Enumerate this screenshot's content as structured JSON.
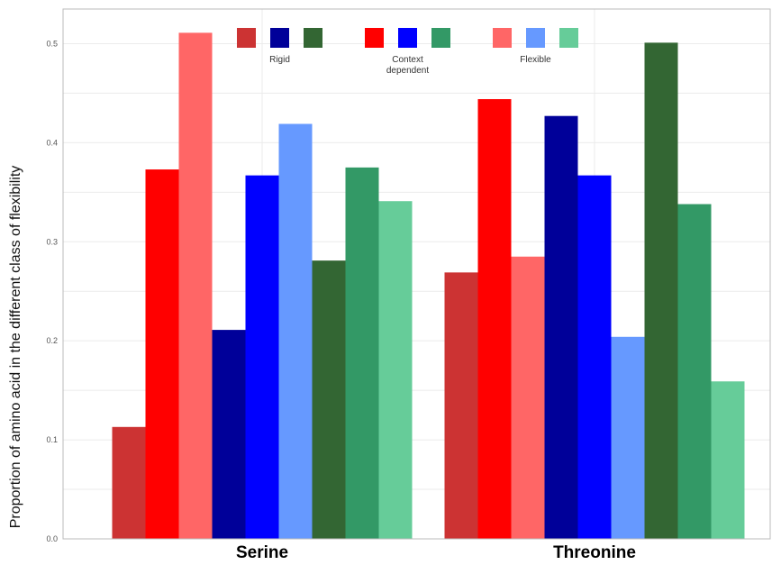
{
  "chart_data": {
    "type": "bar",
    "title": "",
    "xlabel": "",
    "ylabel": "Proportion of amino acid in the different class of flexibility",
    "categories": [
      "Serine",
      "Threonine"
    ],
    "ylim": [
      0,
      0.535
    ],
    "yticks": [
      "0.0",
      "0.1",
      "0.2",
      "0.3",
      "0.4",
      "0.5"
    ],
    "grid": true,
    "legend_position": "top",
    "legend_groups": [
      {
        "label": [
          "Rigid"
        ],
        "series": [
          0,
          3,
          6
        ]
      },
      {
        "label": [
          "Context",
          "dependent"
        ],
        "series": [
          1,
          4,
          7
        ]
      },
      {
        "label": [
          "Flexible"
        ],
        "series": [
          2,
          5,
          8
        ]
      }
    ],
    "series": [
      {
        "color": "#cc3333",
        "values": [
          0.113,
          0.269
        ]
      },
      {
        "color": "#ff0000",
        "values": [
          0.373,
          0.444
        ]
      },
      {
        "color": "#ff6666",
        "values": [
          0.511,
          0.285
        ]
      },
      {
        "color": "#000099",
        "values": [
          0.211,
          0.427
        ]
      },
      {
        "color": "#0000ff",
        "values": [
          0.367,
          0.367
        ]
      },
      {
        "color": "#6699ff",
        "values": [
          0.419,
          0.204
        ]
      },
      {
        "color": "#336633",
        "values": [
          0.281,
          0.501
        ]
      },
      {
        "color": "#339966",
        "values": [
          0.375,
          0.338
        ]
      },
      {
        "color": "#66cc99",
        "values": [
          0.341,
          0.159
        ]
      }
    ]
  }
}
